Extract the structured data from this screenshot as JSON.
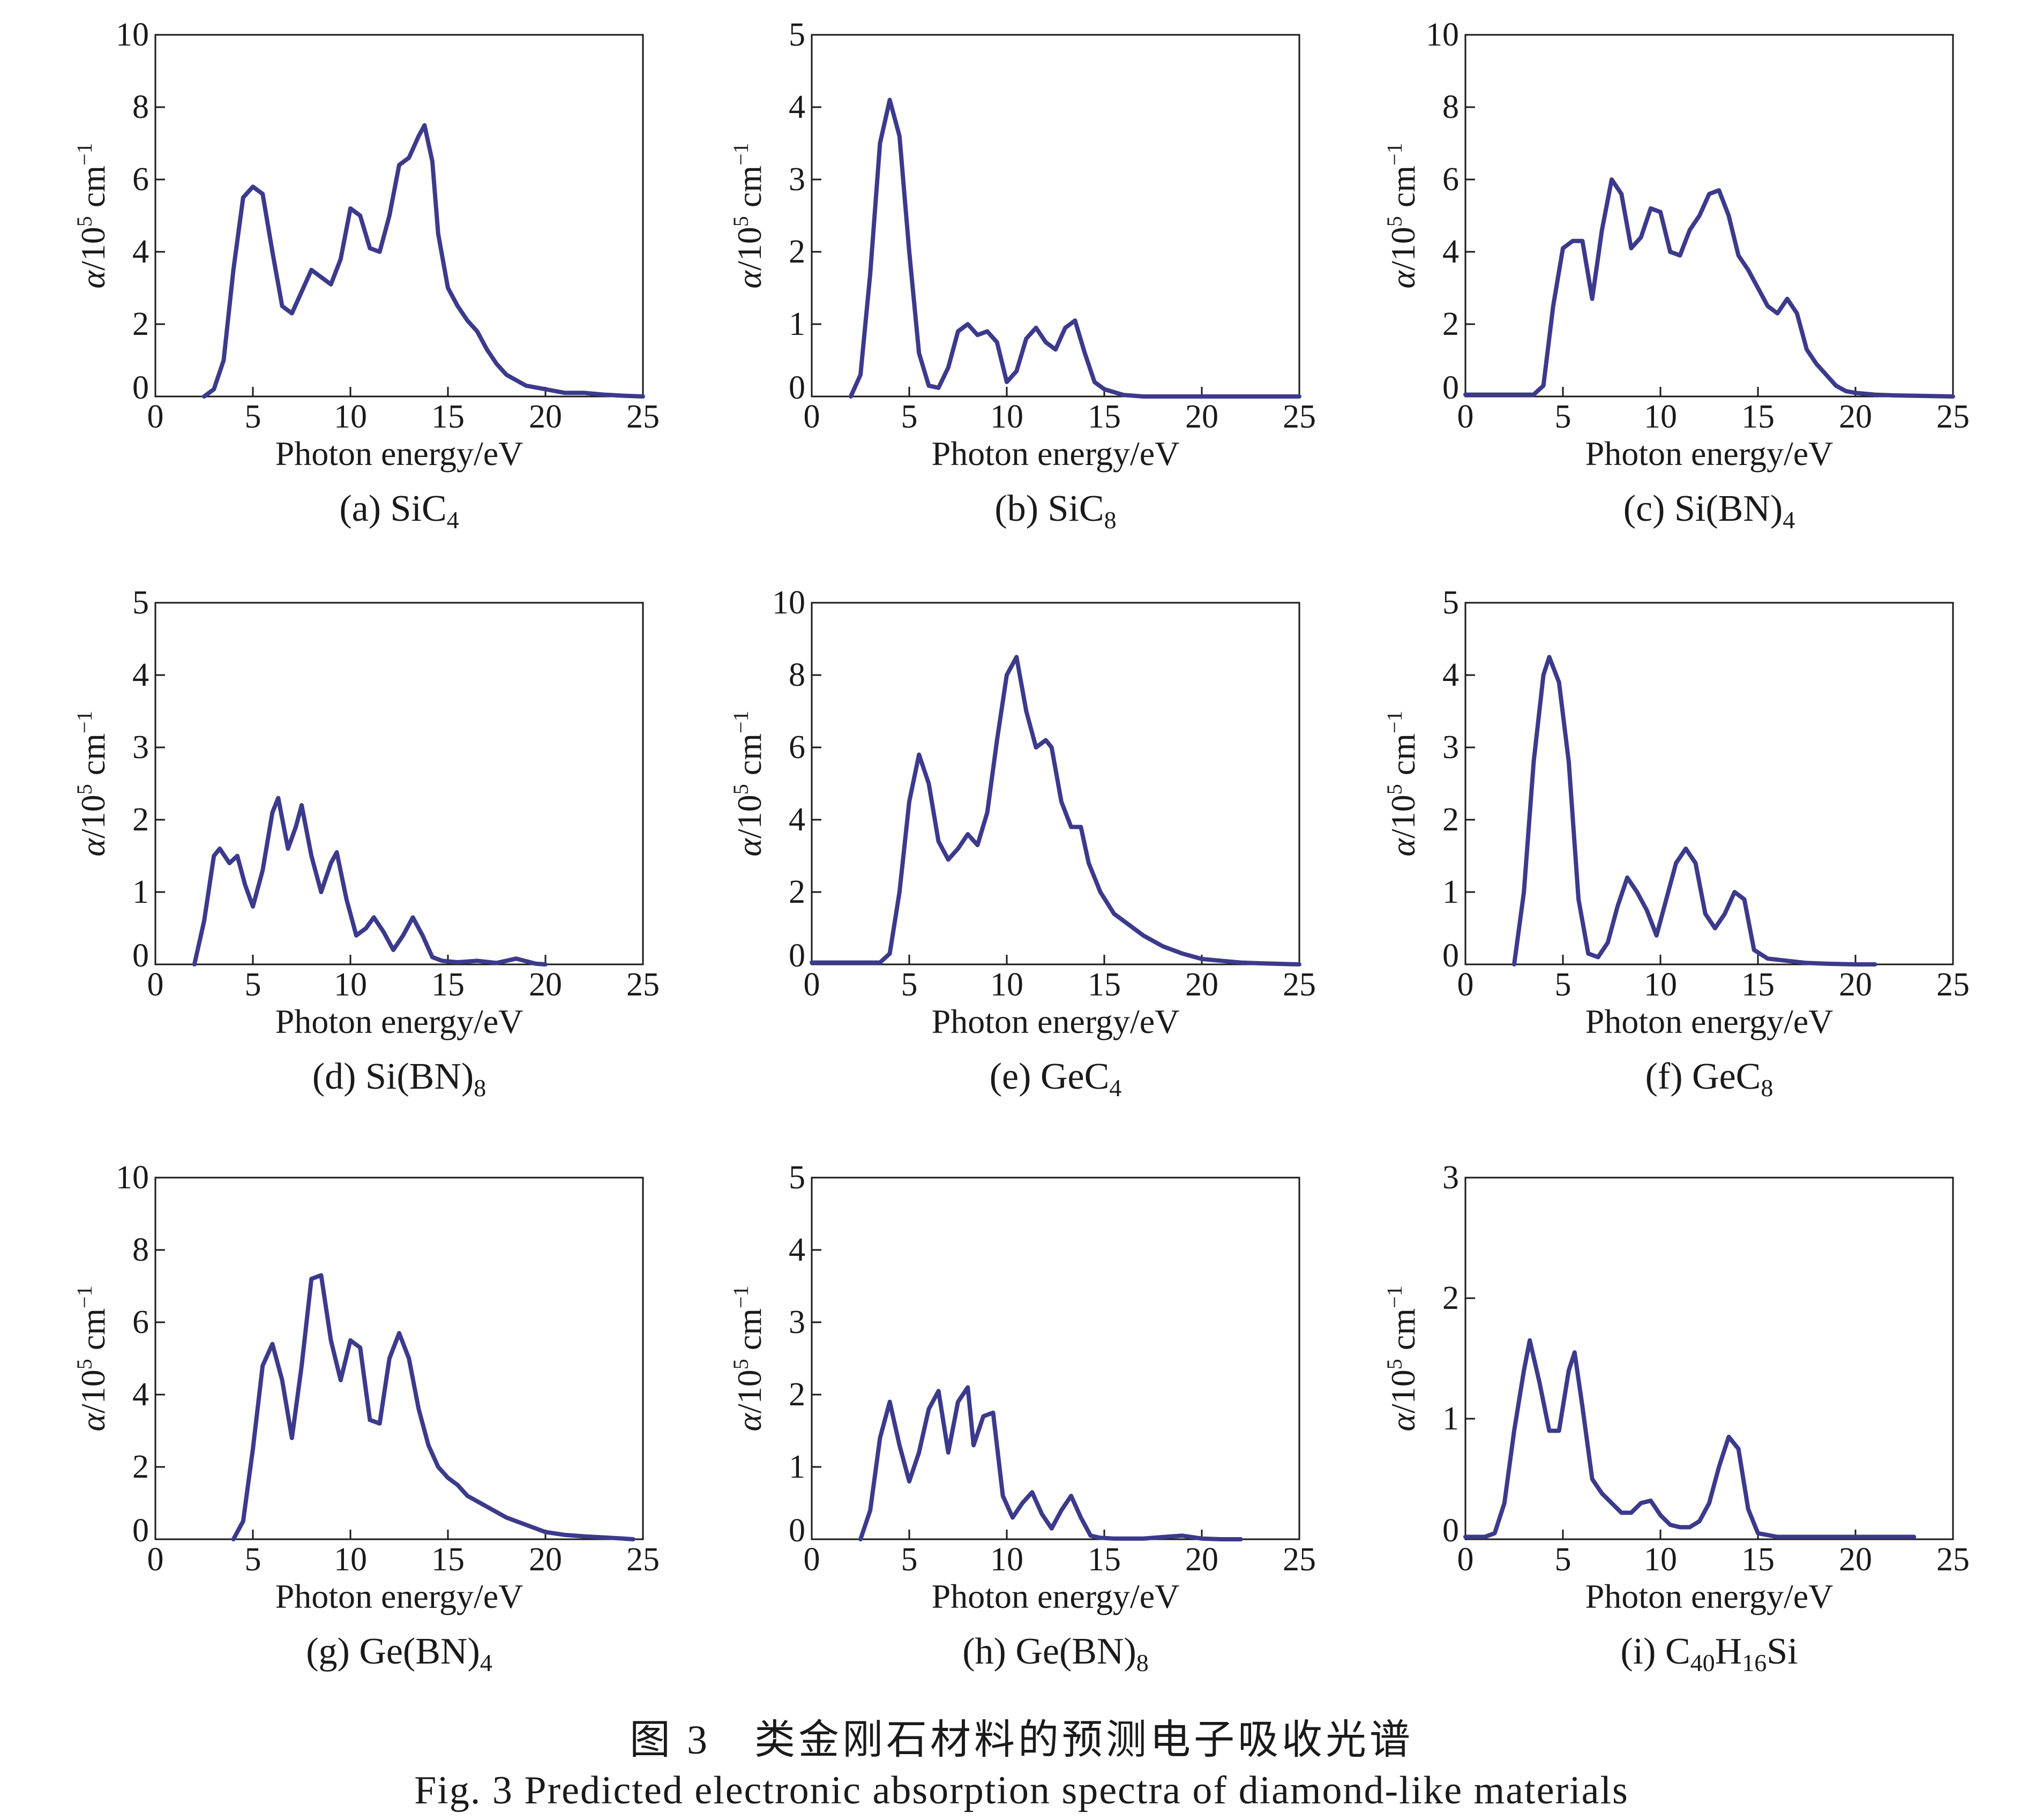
{
  "figure": {
    "caption_zh": "图 3　类金刚石材料的预测电子吸收光谱",
    "caption_en": "Fig. 3  Predicted electronic absorption spectra of diamond-like materials"
  },
  "colors": {
    "series": "#3b3a8c",
    "axis": "#1a1a1a"
  },
  "chart_data": [
    {
      "type": "line",
      "panel_letter": "(a)",
      "material": [
        [
          "Si",
          ""
        ],
        [
          "C",
          "4"
        ]
      ],
      "xlabel": "Photon energy/eV",
      "ylabel": {
        "alpha": "α",
        "rest": "/10",
        "exp": "5",
        "unit": " cm",
        "unit_exp": "−1"
      },
      "xlim": [
        0,
        25
      ],
      "ylim": [
        0,
        10
      ],
      "xticks": [
        "0",
        "5",
        "10",
        "15",
        "20",
        "25"
      ],
      "yticks": [
        "0",
        "2",
        "4",
        "6",
        "8",
        "10"
      ],
      "x": [
        2.5,
        3.0,
        3.5,
        4.0,
        4.5,
        5.0,
        5.5,
        6.0,
        6.5,
        7.0,
        7.5,
        8.0,
        8.5,
        9.0,
        9.5,
        10.0,
        10.5,
        11.0,
        11.5,
        12.0,
        12.5,
        13.0,
        13.5,
        13.8,
        14.2,
        14.5,
        15.0,
        15.5,
        16.0,
        16.5,
        17.0,
        17.5,
        18.0,
        19.0,
        20.0,
        21.0,
        22.0,
        23.0,
        24.0,
        25.0
      ],
      "y": [
        0.0,
        0.2,
        1.0,
        3.5,
        5.5,
        5.8,
        5.6,
        4.0,
        2.5,
        2.3,
        2.9,
        3.5,
        3.3,
        3.1,
        3.8,
        5.2,
        5.0,
        4.1,
        4.0,
        5.0,
        6.4,
        6.6,
        7.2,
        7.5,
        6.5,
        4.5,
        3.0,
        2.5,
        2.1,
        1.8,
        1.3,
        0.9,
        0.6,
        0.3,
        0.2,
        0.1,
        0.1,
        0.05,
        0.02,
        0.0
      ]
    },
    {
      "type": "line",
      "panel_letter": "(b)",
      "material": [
        [
          "Si",
          ""
        ],
        [
          "C",
          "8"
        ]
      ],
      "xlabel": "Photon energy/eV",
      "ylabel": {
        "alpha": "α",
        "rest": "/10",
        "exp": "5",
        "unit": " cm",
        "unit_exp": "−1"
      },
      "xlim": [
        0,
        25
      ],
      "ylim": [
        0,
        5
      ],
      "xticks": [
        "0",
        "5",
        "10",
        "15",
        "20",
        "25"
      ],
      "yticks": [
        "0",
        "1",
        "2",
        "3",
        "4",
        "5"
      ],
      "x": [
        2.0,
        2.5,
        3.0,
        3.5,
        4.0,
        4.5,
        5.0,
        5.5,
        6.0,
        6.5,
        7.0,
        7.5,
        8.0,
        8.5,
        9.0,
        9.5,
        10.0,
        10.5,
        11.0,
        11.5,
        12.0,
        12.5,
        13.0,
        13.5,
        14.0,
        14.5,
        15.0,
        16.0,
        17.0,
        18.0,
        20.0,
        22.0,
        25.0
      ],
      "y": [
        0.0,
        0.3,
        1.7,
        3.5,
        4.1,
        3.6,
        2.0,
        0.6,
        0.15,
        0.12,
        0.4,
        0.9,
        1.0,
        0.85,
        0.9,
        0.75,
        0.2,
        0.35,
        0.8,
        0.95,
        0.75,
        0.65,
        0.95,
        1.05,
        0.6,
        0.2,
        0.1,
        0.02,
        0.0,
        0.0,
        0.0,
        0.0,
        0.0
      ]
    },
    {
      "type": "line",
      "panel_letter": "(c)",
      "material": [
        [
          "Si(BN)",
          ""
        ],
        [
          "",
          "4"
        ]
      ],
      "xlabel": "Photon energy/eV",
      "ylabel": {
        "alpha": "α",
        "rest": "/10",
        "exp": "5",
        "unit": " cm",
        "unit_exp": "−1"
      },
      "xlim": [
        0,
        25
      ],
      "ylim": [
        0,
        10
      ],
      "xticks": [
        "0",
        "5",
        "10",
        "15",
        "20",
        "25"
      ],
      "yticks": [
        "0",
        "2",
        "4",
        "6",
        "8",
        "10"
      ],
      "x": [
        0.0,
        2.0,
        3.5,
        4.0,
        4.5,
        5.0,
        5.5,
        6.0,
        6.5,
        7.0,
        7.5,
        8.0,
        8.5,
        9.0,
        9.5,
        10.0,
        10.5,
        11.0,
        11.5,
        12.0,
        12.5,
        13.0,
        13.5,
        14.0,
        14.5,
        15.0,
        15.5,
        16.0,
        16.5,
        17.0,
        17.5,
        18.0,
        18.5,
        19.0,
        19.5,
        20.0,
        21.0,
        22.0,
        23.0,
        25.0
      ],
      "y": [
        0.05,
        0.05,
        0.05,
        0.3,
        2.5,
        4.1,
        4.3,
        4.3,
        2.7,
        4.6,
        6.0,
        5.6,
        4.1,
        4.4,
        5.2,
        5.1,
        4.0,
        3.9,
        4.6,
        5.0,
        5.6,
        5.7,
        5.0,
        3.9,
        3.5,
        3.0,
        2.5,
        2.3,
        2.7,
        2.3,
        1.3,
        0.9,
        0.6,
        0.3,
        0.15,
        0.1,
        0.05,
        0.03,
        0.02,
        0.0
      ]
    },
    {
      "type": "line",
      "panel_letter": "(d)",
      "material": [
        [
          "Si(BN)",
          ""
        ],
        [
          "",
          "8"
        ]
      ],
      "xlabel": "Photon energy/eV",
      "ylabel": {
        "alpha": "α",
        "rest": "/10",
        "exp": "5",
        "unit": " cm",
        "unit_exp": "−1"
      },
      "xlim": [
        0,
        25
      ],
      "ylim": [
        0,
        5
      ],
      "xticks": [
        "0",
        "5",
        "10",
        "15",
        "20",
        "25"
      ],
      "yticks": [
        "0",
        "1",
        "2",
        "3",
        "4",
        "5"
      ],
      "x": [
        2.0,
        2.5,
        3.0,
        3.3,
        3.8,
        4.2,
        4.6,
        5.0,
        5.5,
        6.0,
        6.3,
        6.8,
        7.2,
        7.5,
        8.0,
        8.5,
        9.0,
        9.3,
        9.8,
        10.3,
        10.8,
        11.2,
        11.7,
        12.2,
        12.7,
        13.2,
        13.7,
        14.2,
        14.7,
        15.5,
        16.5,
        17.5,
        18.5,
        19.5,
        20.0
      ],
      "y": [
        0.0,
        0.6,
        1.5,
        1.6,
        1.4,
        1.5,
        1.1,
        0.8,
        1.3,
        2.1,
        2.3,
        1.6,
        1.9,
        2.2,
        1.5,
        1.0,
        1.4,
        1.55,
        0.9,
        0.4,
        0.5,
        0.65,
        0.45,
        0.2,
        0.4,
        0.65,
        0.4,
        0.1,
        0.05,
        0.03,
        0.05,
        0.02,
        0.08,
        0.01,
        0.0
      ]
    },
    {
      "type": "line",
      "panel_letter": "(e)",
      "material": [
        [
          "Ge",
          ""
        ],
        [
          "C",
          "4"
        ]
      ],
      "xlabel": "Photon energy/eV",
      "ylabel": {
        "alpha": "α",
        "rest": "/10",
        "exp": "5",
        "unit": " cm",
        "unit_exp": "−1"
      },
      "xlim": [
        0,
        25
      ],
      "ylim": [
        0,
        10
      ],
      "xticks": [
        "0",
        "5",
        "10",
        "15",
        "20",
        "25"
      ],
      "yticks": [
        "0",
        "2",
        "4",
        "6",
        "8",
        "10"
      ],
      "x": [
        0.0,
        2.0,
        3.5,
        4.0,
        4.5,
        5.0,
        5.5,
        6.0,
        6.5,
        7.0,
        7.5,
        8.0,
        8.5,
        9.0,
        9.5,
        10.0,
        10.5,
        11.0,
        11.5,
        12.0,
        12.3,
        12.8,
        13.3,
        13.8,
        14.2,
        14.8,
        15.5,
        16.0,
        17.0,
        18.0,
        19.0,
        20.0,
        21.0,
        22.0,
        23.0,
        25.0
      ],
      "y": [
        0.05,
        0.05,
        0.05,
        0.3,
        2.0,
        4.5,
        5.8,
        5.0,
        3.4,
        2.9,
        3.2,
        3.6,
        3.3,
        4.2,
        6.2,
        8.0,
        8.5,
        7.0,
        6.0,
        6.2,
        6.0,
        4.5,
        3.8,
        3.8,
        2.8,
        2.0,
        1.4,
        1.2,
        0.8,
        0.5,
        0.3,
        0.15,
        0.1,
        0.05,
        0.03,
        0.0
      ]
    },
    {
      "type": "line",
      "panel_letter": "(f)",
      "material": [
        [
          "Ge",
          ""
        ],
        [
          "C",
          "8"
        ]
      ],
      "xlabel": "Photon energy/eV",
      "ylabel": {
        "alpha": "α",
        "rest": "/10",
        "exp": "5",
        "unit": " cm",
        "unit_exp": "−1"
      },
      "xlim": [
        0,
        25
      ],
      "ylim": [
        0,
        5
      ],
      "xticks": [
        "0",
        "5",
        "10",
        "15",
        "20",
        "25"
      ],
      "yticks": [
        "0",
        "1",
        "2",
        "3",
        "4",
        "5"
      ],
      "x": [
        2.5,
        3.0,
        3.5,
        4.0,
        4.3,
        4.8,
        5.3,
        5.8,
        6.3,
        6.8,
        7.3,
        7.8,
        8.3,
        8.8,
        9.3,
        9.8,
        10.3,
        10.8,
        11.3,
        11.8,
        12.3,
        12.8,
        13.3,
        13.8,
        14.3,
        14.8,
        15.5,
        16.5,
        17.5,
        18.5,
        20.0,
        21.0
      ],
      "y": [
        0.0,
        1.0,
        2.8,
        4.0,
        4.25,
        3.9,
        2.8,
        0.9,
        0.15,
        0.1,
        0.3,
        0.8,
        1.2,
        1.0,
        0.75,
        0.4,
        0.9,
        1.4,
        1.6,
        1.4,
        0.7,
        0.5,
        0.7,
        1.0,
        0.9,
        0.2,
        0.08,
        0.05,
        0.02,
        0.01,
        0.0,
        0.0
      ]
    },
    {
      "type": "line",
      "panel_letter": "(g)",
      "material": [
        [
          "Ge(BN)",
          ""
        ],
        [
          "",
          "4"
        ]
      ],
      "xlabel": "Photon energy/eV",
      "ylabel": {
        "alpha": "α",
        "rest": "/10",
        "exp": "5",
        "unit": " cm",
        "unit_exp": "−1"
      },
      "xlim": [
        0,
        25
      ],
      "ylim": [
        0,
        10
      ],
      "xticks": [
        "0",
        "5",
        "10",
        "15",
        "20",
        "25"
      ],
      "yticks": [
        "0",
        "2",
        "4",
        "6",
        "8",
        "10"
      ],
      "x": [
        4.0,
        4.5,
        5.0,
        5.5,
        6.0,
        6.5,
        7.0,
        7.5,
        8.0,
        8.5,
        9.0,
        9.5,
        10.0,
        10.5,
        11.0,
        11.5,
        12.0,
        12.5,
        13.0,
        13.5,
        14.0,
        14.5,
        15.0,
        15.5,
        16.0,
        17.0,
        18.0,
        19.0,
        20.0,
        21.0,
        22.0,
        23.0,
        24.0,
        24.5
      ],
      "y": [
        0.0,
        0.5,
        2.5,
        4.8,
        5.4,
        4.4,
        2.8,
        4.8,
        7.2,
        7.3,
        5.5,
        4.4,
        5.5,
        5.3,
        3.3,
        3.2,
        5.0,
        5.7,
        5.0,
        3.6,
        2.6,
        2.0,
        1.7,
        1.5,
        1.2,
        0.9,
        0.6,
        0.4,
        0.2,
        0.12,
        0.08,
        0.05,
        0.02,
        0.0
      ]
    },
    {
      "type": "line",
      "panel_letter": "(h)",
      "material": [
        [
          "Ge(BN)",
          ""
        ],
        [
          "",
          "8"
        ]
      ],
      "xlabel": "Photon energy/eV",
      "ylabel": {
        "alpha": "α",
        "rest": "/10",
        "exp": "5",
        "unit": " cm",
        "unit_exp": "−1"
      },
      "xlim": [
        0,
        25
      ],
      "ylim": [
        0,
        5
      ],
      "xticks": [
        "0",
        "5",
        "10",
        "15",
        "20",
        "25"
      ],
      "yticks": [
        "0",
        "1",
        "2",
        "3",
        "4",
        "5"
      ],
      "x": [
        2.5,
        3.0,
        3.5,
        4.0,
        4.5,
        5.0,
        5.5,
        6.0,
        6.5,
        7.0,
        7.5,
        8.0,
        8.3,
        8.8,
        9.3,
        9.8,
        10.3,
        10.8,
        11.3,
        11.8,
        12.3,
        12.8,
        13.3,
        13.8,
        14.3,
        14.8,
        15.5,
        17.0,
        18.0,
        19.0,
        20.0,
        21.0,
        22.0
      ],
      "y": [
        0.0,
        0.4,
        1.4,
        1.9,
        1.3,
        0.8,
        1.2,
        1.8,
        2.05,
        1.2,
        1.9,
        2.1,
        1.3,
        1.7,
        1.75,
        0.6,
        0.3,
        0.5,
        0.65,
        0.35,
        0.15,
        0.4,
        0.6,
        0.3,
        0.05,
        0.02,
        0.01,
        0.01,
        0.03,
        0.05,
        0.01,
        0.0,
        0.0
      ]
    },
    {
      "type": "line",
      "panel_letter": "(i)",
      "material": [
        [
          "C",
          "40"
        ],
        [
          "H",
          "16"
        ],
        [
          "Si",
          ""
        ]
      ],
      "xlabel": "Photon energy/eV",
      "ylabel": {
        "alpha": "α",
        "rest": "/10",
        "exp": "5",
        "unit": " cm",
        "unit_exp": "−1"
      },
      "xlim": [
        0,
        25
      ],
      "ylim": [
        0,
        3
      ],
      "xticks": [
        "0",
        "5",
        "10",
        "15",
        "20",
        "25"
      ],
      "yticks": [
        "0",
        "1",
        "2",
        "3"
      ],
      "x": [
        0.0,
        1.0,
        1.5,
        2.0,
        2.5,
        3.0,
        3.3,
        3.8,
        4.3,
        4.8,
        5.3,
        5.6,
        6.0,
        6.5,
        7.0,
        7.5,
        8.0,
        8.5,
        9.0,
        9.5,
        10.0,
        10.5,
        11.0,
        11.5,
        12.0,
        12.5,
        13.0,
        13.5,
        14.0,
        14.5,
        15.0,
        16.0,
        17.0,
        18.0,
        20.0,
        22.0,
        23.0
      ],
      "y": [
        0.02,
        0.02,
        0.05,
        0.3,
        0.9,
        1.4,
        1.65,
        1.3,
        0.9,
        0.9,
        1.4,
        1.55,
        1.1,
        0.5,
        0.38,
        0.3,
        0.22,
        0.22,
        0.3,
        0.32,
        0.2,
        0.12,
        0.1,
        0.1,
        0.15,
        0.3,
        0.6,
        0.85,
        0.75,
        0.25,
        0.05,
        0.02,
        0.02,
        0.02,
        0.02,
        0.02,
        0.02
      ]
    }
  ]
}
